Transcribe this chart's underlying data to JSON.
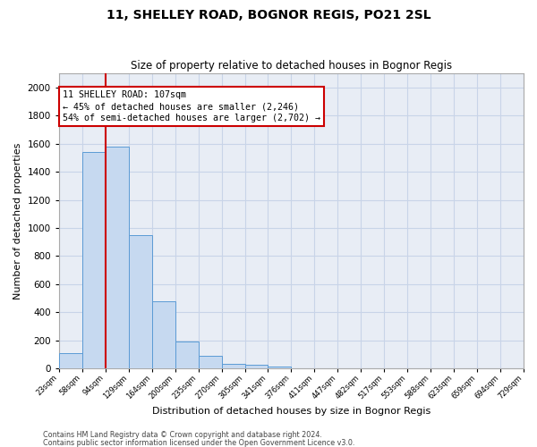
{
  "title": "11, SHELLEY ROAD, BOGNOR REGIS, PO21 2SL",
  "subtitle": "Size of property relative to detached houses in Bognor Regis",
  "xlabel": "Distribution of detached houses by size in Bognor Regis",
  "ylabel": "Number of detached properties",
  "bar_color": "#c6d9f0",
  "bar_edge_color": "#5b9bd5",
  "bar_values": [
    110,
    1540,
    1580,
    950,
    480,
    190,
    90,
    35,
    25,
    15,
    0,
    0,
    0,
    0,
    0,
    0,
    0,
    0,
    0,
    0
  ],
  "bin_labels": [
    "23sqm",
    "58sqm",
    "94sqm",
    "129sqm",
    "164sqm",
    "200sqm",
    "235sqm",
    "270sqm",
    "305sqm",
    "341sqm",
    "376sqm",
    "411sqm",
    "447sqm",
    "482sqm",
    "517sqm",
    "553sqm",
    "588sqm",
    "623sqm",
    "659sqm",
    "694sqm",
    "729sqm"
  ],
  "vline_x": 2.0,
  "annotation_text": "11 SHELLEY ROAD: 107sqm\n← 45% of detached houses are smaller (2,246)\n54% of semi-detached houses are larger (2,702) →",
  "annotation_box_facecolor": "#ffffff",
  "annotation_box_edgecolor": "#cc0000",
  "vline_color": "#cc0000",
  "ylim": [
    0,
    2100
  ],
  "yticks": [
    0,
    200,
    400,
    600,
    800,
    1000,
    1200,
    1400,
    1600,
    1800,
    2000
  ],
  "grid_color": "#c8d4e8",
  "background_color": "#e8edf5",
  "footer1": "Contains HM Land Registry data © Crown copyright and database right 2024.",
  "footer2": "Contains public sector information licensed under the Open Government Licence v3.0."
}
